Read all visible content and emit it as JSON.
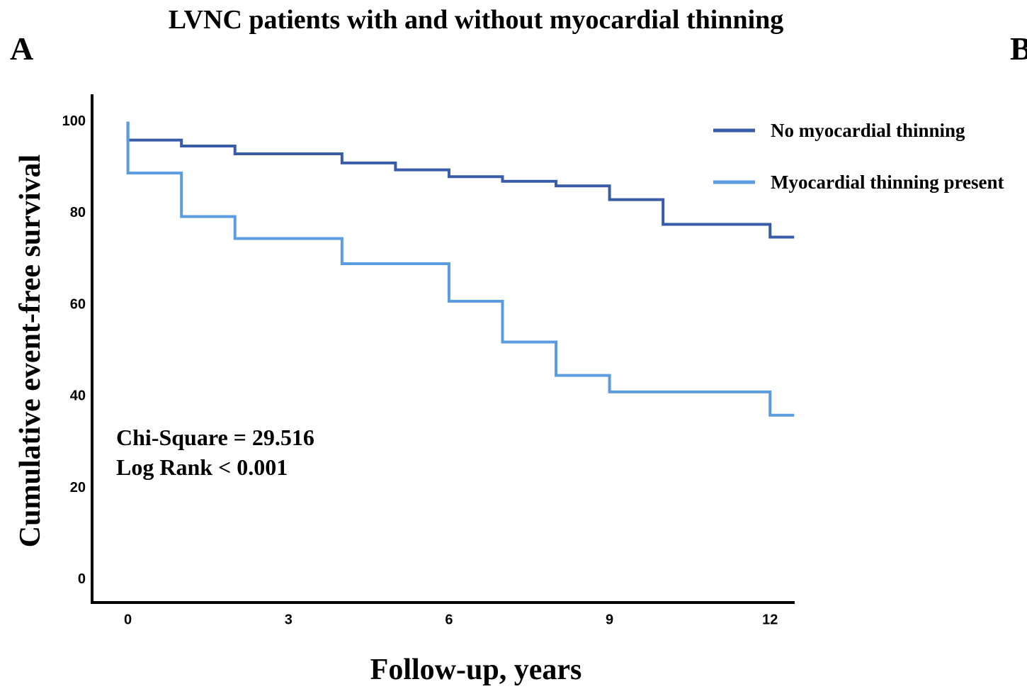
{
  "panel_labels": [
    "A",
    "B"
  ],
  "chart_data": {
    "type": "step",
    "title": "LVNC patients  with and without myocardial thinning",
    "xlabel": "Follow-up, years",
    "ylabel": "Cumulative event-free survival",
    "annotations": [
      "Chi-Square = 29.516",
      "Log Rank < 0.001"
    ],
    "x": [
      0,
      0,
      1,
      2,
      4,
      5,
      6,
      7,
      8,
      9,
      10,
      12,
      12.45
    ],
    "series": [
      {
        "name": "No myocardial thinning",
        "color": "#3a5ba8",
        "values": [
          100,
          96,
          94.7,
          93,
          91,
          89.5,
          88,
          87,
          86,
          83,
          77.6,
          74.8,
          74.8
        ]
      },
      {
        "name": "Myocardial thinning present",
        "color": "#5b9be0",
        "values": [
          100,
          88.8,
          79.3,
          74.5,
          69,
          69,
          60.8,
          51.9,
          44.6,
          41,
          41,
          35.9,
          35.9
        ]
      }
    ],
    "xlim": [
      -0.67,
      12.46
    ],
    "ylim": [
      -5,
      106
    ],
    "xticks": [
      0,
      3,
      6,
      9,
      12
    ],
    "yticks": [
      0,
      20,
      40,
      60,
      80,
      100
    ],
    "legend": "upper right"
  }
}
